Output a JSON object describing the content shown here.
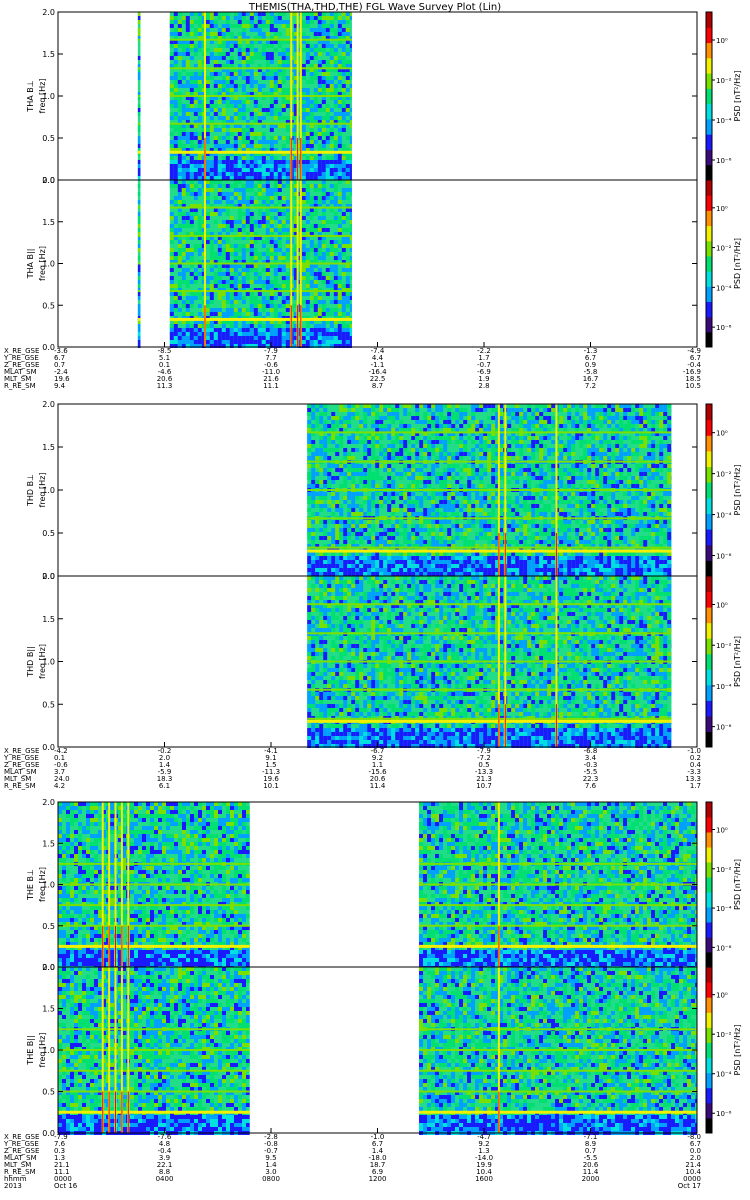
{
  "title": "THEMIS(THA,THD,THE) FGL Wave Survey Plot (Lin)",
  "colors": {
    "background": "#ffffff",
    "axis": "#000000",
    "colormap": [
      "#000000",
      "#3a0a7a",
      "#1a1aff",
      "#00a0ff",
      "#00e0e0",
      "#00e070",
      "#7ae000",
      "#f0f000",
      "#ff9000",
      "#ff0000",
      "#b00000"
    ]
  },
  "chart_data": [
    {
      "type": "heatmap",
      "panel": "THA BL",
      "ylabel_line1": "THA B⊥",
      "ylabel_line2": "freq [Hz]",
      "ylim": [
        0,
        2.0
      ],
      "yticks": [
        "0.0",
        "0.5",
        "1.0",
        "1.5",
        "2.0"
      ],
      "colorbar_label": "PSD [nT²/Hz]",
      "colorbar_ticks": [
        "10⁰",
        "10⁻²",
        "10⁻⁴",
        "10⁻⁶"
      ],
      "data_intervals": [
        [
          0.125,
          0.129
        ],
        [
          0.175,
          0.46
        ]
      ],
      "harmonic_lines_hz": [
        0.33,
        0.67,
        1.0,
        1.33,
        1.67
      ],
      "strong_line_hz": 0.33,
      "vertical_bursts": [
        0.23,
        0.365,
        0.375,
        0.38
      ]
    },
    {
      "type": "heatmap",
      "panel": "THA B||",
      "ylabel_line1": "THA B||",
      "ylabel_line2": "freq [Hz]",
      "ylim": [
        0,
        2.0
      ],
      "yticks": [
        "0.0",
        "0.5",
        "1.0",
        "1.5",
        "2.0"
      ],
      "colorbar_label": "PSD [nT²/Hz]",
      "colorbar_ticks": [
        "10⁰",
        "10⁻²",
        "10⁻⁴",
        "10⁻⁶"
      ],
      "data_intervals": [
        [
          0.125,
          0.129
        ],
        [
          0.175,
          0.46
        ]
      ],
      "harmonic_lines_hz": [
        0.33,
        0.67,
        1.0,
        1.33,
        1.67
      ],
      "strong_line_hz": 0.33,
      "vertical_bursts": [
        0.23,
        0.365,
        0.375,
        0.38
      ]
    },
    {
      "type": "heatmap",
      "panel": "THD BL",
      "ylabel_line1": "THD B⊥",
      "ylabel_line2": "freq [Hz]",
      "ylim": [
        0,
        2.0
      ],
      "yticks": [
        "0.0",
        "0.5",
        "1.0",
        "1.5",
        "2.0"
      ],
      "colorbar_label": "PSD [nT²/Hz]",
      "colorbar_ticks": [
        "10⁰",
        "10⁻²",
        "10⁻⁴",
        "10⁻⁶"
      ],
      "data_intervals": [
        [
          0.39,
          0.96
        ]
      ],
      "harmonic_lines_hz": [
        0.33,
        0.67,
        1.0,
        1.33,
        1.67
      ],
      "strong_line_hz": 0.29,
      "vertical_bursts": [
        0.69,
        0.7,
        0.78
      ]
    },
    {
      "type": "heatmap",
      "panel": "THD B||",
      "ylabel_line1": "THD B||",
      "ylabel_line2": "freq [Hz]",
      "ylim": [
        0,
        2.0
      ],
      "yticks": [
        "0.0",
        "0.5",
        "1.0",
        "1.5",
        "2.0"
      ],
      "colorbar_label": "PSD [nT²/Hz]",
      "colorbar_ticks": [
        "10⁰",
        "10⁻²",
        "10⁻⁴",
        "10⁻⁶"
      ],
      "data_intervals": [
        [
          0.39,
          0.96
        ]
      ],
      "harmonic_lines_hz": [
        0.33,
        0.67,
        1.0,
        1.33,
        1.67
      ],
      "strong_line_hz": 0.3,
      "vertical_bursts": [
        0.69,
        0.7,
        0.78
      ]
    },
    {
      "type": "heatmap",
      "panel": "THE BL",
      "ylabel_line1": "THE B⊥",
      "ylabel_line2": "freq [Hz]",
      "ylim": [
        0,
        2.0
      ],
      "yticks": [
        "0.0",
        "0.5",
        "1.0",
        "1.5",
        "2.0"
      ],
      "colorbar_label": "PSD [nT²/Hz]",
      "colorbar_ticks": [
        "10⁰",
        "10⁻²",
        "10⁻⁴",
        "10⁻⁶"
      ],
      "data_intervals": [
        [
          0.0,
          0.3
        ],
        [
          0.565,
          1.0
        ]
      ],
      "harmonic_lines_hz": [
        0.25,
        0.5,
        0.75,
        1.0,
        1.25
      ],
      "strong_line_hz": 0.25,
      "vertical_bursts": [
        0.07,
        0.08,
        0.09,
        0.1,
        0.11,
        0.69
      ]
    },
    {
      "type": "heatmap",
      "panel": "THE B||",
      "ylabel_line1": "THE B||",
      "ylabel_line2": "freq [Hz]",
      "ylim": [
        0,
        2.0
      ],
      "yticks": [
        "0.0",
        "0.5",
        "1.0",
        "1.5",
        "2.0"
      ],
      "colorbar_label": "PSD [nT²/Hz]",
      "colorbar_ticks": [
        "10⁰",
        "10⁻²",
        "10⁻⁴",
        "10⁻⁶"
      ],
      "data_intervals": [
        [
          0.0,
          0.3
        ],
        [
          0.565,
          1.0
        ]
      ],
      "harmonic_lines_hz": [
        0.25,
        0.5,
        0.75,
        1.0,
        1.25
      ],
      "strong_line_hz": 0.25,
      "vertical_bursts": [
        0.07,
        0.08,
        0.09,
        0.1,
        0.11,
        0.69
      ]
    }
  ],
  "ephemeris": [
    {
      "rows": [
        {
          "label": "X_RE_GSE",
          "values": [
            "-3.6",
            "-8.5",
            "-7.9",
            "-7.4",
            "-2.2",
            "-1.3",
            "-4.9"
          ]
        },
        {
          "label": "Y_RE_GSE",
          "values": [
            "6.7",
            "5.1",
            "7.7",
            "4.4",
            "1.7",
            "6.7",
            "6.7"
          ]
        },
        {
          "label": "Z_RE_GSE",
          "values": [
            "0.7",
            "0.1",
            "-0.6",
            "-1.1",
            "-0.7",
            "0.9",
            "-0.4"
          ]
        },
        {
          "label": "MLAT_SM",
          "values": [
            "-2.4",
            "-4.6",
            "-11.0",
            "-16.4",
            "-6.9",
            "-5.8",
            "-16.9"
          ]
        },
        {
          "label": "MLT_SM",
          "values": [
            "19.6",
            "20.6",
            "21.6",
            "22.5",
            "1.9",
            "16.7",
            "18.5"
          ]
        },
        {
          "label": "R_RE_SM",
          "values": [
            "9.4",
            "11.3",
            "11.1",
            "8.7",
            "2.8",
            "7.2",
            "10.5"
          ]
        }
      ]
    },
    {
      "rows": [
        {
          "label": "X_RE_GSE",
          "values": [
            "-4.2",
            "-0.2",
            "-4.1",
            "-6.7",
            "-7.9",
            "-6.8",
            "-1.0"
          ]
        },
        {
          "label": "Y_RE_GSE",
          "values": [
            "0.1",
            "2.0",
            "9.1",
            "9.2",
            "-7.2",
            "3.4",
            "0.2"
          ]
        },
        {
          "label": "Z_RE_GSE",
          "values": [
            "-0.6",
            "1.4",
            "1.5",
            "1.1",
            "0.5",
            "-0.3",
            "0.4"
          ]
        },
        {
          "label": "MLAT_SM",
          "values": [
            "3.7",
            "-5.9",
            "-11.3",
            "-15.6",
            "-13.3",
            "-5.5",
            "-3.3"
          ]
        },
        {
          "label": "MLT_SM",
          "values": [
            "24.0",
            "18.3",
            "19.6",
            "20.6",
            "21.3",
            "22.3",
            "13.3"
          ]
        },
        {
          "label": "R_RE_SM",
          "values": [
            "4.2",
            "6.1",
            "10.1",
            "11.4",
            "10.7",
            "7.6",
            "1.7"
          ]
        }
      ]
    },
    {
      "rows": [
        {
          "label": "X_RE_GSE",
          "values": [
            "-7.9",
            "-7.6",
            "-2.8",
            "-1.0",
            "-4.7",
            "-7.1",
            "-8.0"
          ]
        },
        {
          "label": "Y_RE_GSE",
          "values": [
            "7.6",
            "4.8",
            "-0.8",
            "6.7",
            "9.2",
            "8.9",
            "6.7"
          ]
        },
        {
          "label": "Z_RE_GSE",
          "values": [
            "0.3",
            "-0.4",
            "-0.7",
            "1.4",
            "1.3",
            "0.7",
            "0.0"
          ]
        },
        {
          "label": "MLAT_SM",
          "values": [
            "1.3",
            "3.9",
            "9.5",
            "-18.0",
            "-14.0",
            "-5.5",
            "2.0"
          ]
        },
        {
          "label": "MLT_SM",
          "values": [
            "21.1",
            "22.1",
            "1.4",
            "18.7",
            "19.9",
            "20.6",
            "21.4"
          ]
        },
        {
          "label": "R_RE_SM",
          "values": [
            "11.1",
            "8.8",
            "3.0",
            "6.9",
            "10.4",
            "11.4",
            "10.4"
          ]
        }
      ]
    }
  ],
  "time_axis": {
    "row1_label": "hhmm",
    "row1_values": [
      "0000",
      "0400",
      "0800",
      "1200",
      "1600",
      "2000",
      "0000"
    ],
    "row2_label": "2013",
    "row2_values": [
      "Oct 16",
      "",
      "",
      "",
      "",
      "",
      "Oct 17"
    ]
  }
}
